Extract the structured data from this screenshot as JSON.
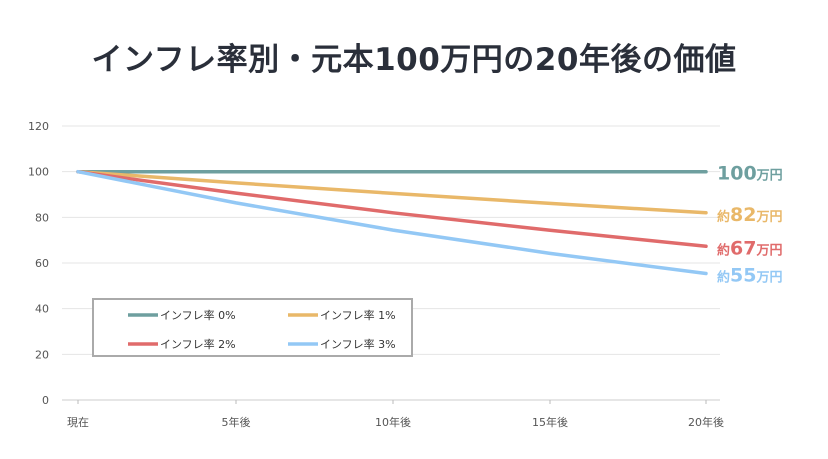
{
  "title": "インフレ率別・元本100万円の20年後の価値",
  "chart_data": {
    "type": "line",
    "title": "インフレ率別・元本100万円の20年後の価値",
    "xlabel": "",
    "ylabel": "",
    "x": [
      "現在",
      "5年後",
      "10年後",
      "15年後",
      "20年後"
    ],
    "ylim": [
      0,
      120
    ],
    "yticks": [
      0,
      20,
      40,
      60,
      80,
      100,
      120
    ],
    "grid": true,
    "legend_position": "bottom-left",
    "series": [
      {
        "name": "インフレ率 0%",
        "color": "#6e9f9f",
        "values": [
          100,
          100,
          100,
          100,
          100
        ],
        "end_label": {
          "prefix": "",
          "value": "100",
          "unit": "万円"
        }
      },
      {
        "name": "インフレ率 1%",
        "color": "#e9b869",
        "values": [
          100,
          95.1,
          90.5,
          86.1,
          82
        ],
        "end_label": {
          "prefix": "約",
          "value": "82",
          "unit": "万円"
        }
      },
      {
        "name": "インフレ率 2%",
        "color": "#e06b6b",
        "values": [
          100,
          90.6,
          82,
          74.3,
          67.3
        ],
        "end_label": {
          "prefix": "約",
          "value": "67",
          "unit": "万円"
        }
      },
      {
        "name": "インフレ率 3%",
        "color": "#93c8f5",
        "values": [
          100,
          86.3,
          74.4,
          64.2,
          55.4
        ],
        "end_label": {
          "prefix": "約",
          "value": "55",
          "unit": "万円"
        }
      }
    ]
  }
}
